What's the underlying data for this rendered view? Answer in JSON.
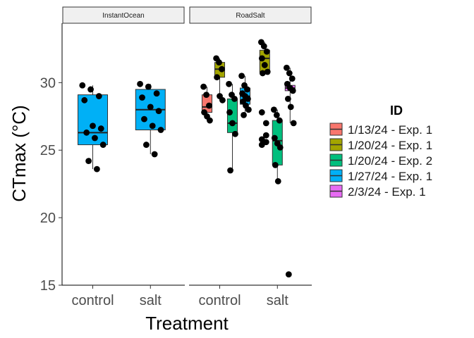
{
  "chart_data": {
    "type": "boxplot",
    "xlabel": "Treatment",
    "ylabel": "CTmax (°C)",
    "ylim": [
      15,
      34.4
    ],
    "yticks": [
      15,
      20,
      25,
      30
    ],
    "grid": false,
    "legend_position": "right",
    "facets": [
      "InstantOcean",
      "RoadSalt"
    ],
    "categories": [
      "control",
      "salt"
    ],
    "legend": {
      "title": "ID",
      "entries": [
        {
          "label": "1/13/24 - Exp. 1",
          "color": "#F8766D"
        },
        {
          "label": "1/20/24 - Exp. 1",
          "color": "#A3A500"
        },
        {
          "label": "1/20/24 - Exp. 2",
          "color": "#00BF7D"
        },
        {
          "label": "1/27/24 - Exp. 1",
          "color": "#00B0F6"
        },
        {
          "label": "2/3/24 - Exp. 1",
          "color": "#E76BF3"
        }
      ]
    },
    "boxes": [
      {
        "facet": "InstantOcean",
        "category": "control",
        "id": "1/27/24 - Exp. 1",
        "group_index": 0,
        "groups_at_x": 1,
        "lower_whisker": 23.6,
        "q1": 25.4,
        "median": 26.3,
        "q3": 29.1,
        "upper_whisker": 29.8,
        "points": [
          29.8,
          29.5,
          29.0,
          28.7,
          26.8,
          26.6,
          26.3,
          25.9,
          25.4,
          24.2,
          23.6
        ]
      },
      {
        "facet": "InstantOcean",
        "category": "salt",
        "id": "1/27/24 - Exp. 1",
        "group_index": 0,
        "groups_at_x": 1,
        "lower_whisker": 24.7,
        "q1": 26.5,
        "median": 28.0,
        "q3": 29.5,
        "upper_whisker": 29.9,
        "points": [
          29.9,
          29.7,
          29.2,
          28.9,
          28.2,
          27.9,
          27.3,
          26.8,
          26.5,
          25.4,
          24.7
        ]
      },
      {
        "facet": "RoadSalt",
        "category": "control",
        "id": "1/13/24 - Exp. 1",
        "group_index": 0,
        "groups_at_x": 3,
        "lower_whisker": 27.2,
        "q1": 27.8,
        "median": 28.2,
        "q3": 29.1,
        "upper_whisker": 29.7,
        "points": [
          29.7,
          29.1,
          28.3,
          27.8,
          27.5,
          27.2
        ]
      },
      {
        "facet": "RoadSalt",
        "category": "control",
        "id": "1/20/24 - Exp. 1",
        "group_index": 1,
        "groups_at_x": 3,
        "lower_whisker": 28.7,
        "q1": 30.4,
        "median": 31.0,
        "q3": 31.5,
        "upper_whisker": 31.8,
        "points": [
          31.8,
          31.5,
          31.0,
          30.4,
          29.0,
          28.7
        ]
      },
      {
        "facet": "RoadSalt",
        "category": "control",
        "id": "1/20/24 - Exp. 2",
        "group_index": 2,
        "groups_at_x": 3,
        "lower_whisker": 23.5,
        "q1": 26.3,
        "median": 27.0,
        "q3": 28.8,
        "upper_whisker": 29.9,
        "points": [
          29.9,
          29.1,
          28.8,
          27.8,
          27.0,
          26.2,
          23.5
        ]
      },
      {
        "facet": "RoadSalt",
        "category": "control",
        "id": "1/27/24 - Exp. 1",
        "group_index": 3,
        "groups_at_x": 3,
        "lower_whisker": 27.6,
        "q1": 28.4,
        "median": 29.0,
        "q3": 29.6,
        "upper_whisker": 30.5,
        "points": [
          30.5,
          29.8,
          29.5,
          29.2,
          29.0,
          28.8,
          28.6,
          28.3,
          28.0,
          27.6
        ]
      },
      {
        "facet": "RoadSalt",
        "category": "salt",
        "id": "1/20/24 - Exp. 1",
        "group_index": 0,
        "groups_at_x": 3,
        "lower_whisker": 30.7,
        "q1": 30.8,
        "median": 31.8,
        "q3": 32.4,
        "upper_whisker": 33.0,
        "points": [
          33.0,
          32.7,
          32.3,
          31.8,
          31.3,
          30.8,
          30.7
        ]
      },
      {
        "facet": "RoadSalt",
        "category": "salt",
        "id": "1/20/24 - Exp. 2",
        "group_index": 1,
        "groups_at_x": 3,
        "lower_whisker": 22.7,
        "q1": 23.9,
        "median": 25.7,
        "q3": 27.2,
        "upper_whisker": 28.0,
        "points": [
          28.0,
          27.6,
          27.2,
          25.9,
          25.5,
          25.2,
          23.9,
          22.7
        ]
      },
      {
        "facet": "RoadSalt",
        "category": "salt",
        "id": "2/3/24 - Exp. 1",
        "group_index": 2,
        "groups_at_x": 3,
        "lower_whisker": 27.0,
        "q1": 29.4,
        "median": 29.6,
        "q3": 29.8,
        "upper_whisker": 31.1,
        "outliers": [
          15.8
        ],
        "points": [
          31.1,
          30.7,
          30.3,
          29.9,
          29.6,
          29.4,
          28.8,
          28.2,
          27.0,
          15.8
        ]
      }
    ],
    "extra_points": [
      {
        "facet": "RoadSalt",
        "category": "salt",
        "values": [
          27.8,
          26.1,
          25.8,
          25.6,
          25.4,
          27.0
        ]
      }
    ]
  }
}
